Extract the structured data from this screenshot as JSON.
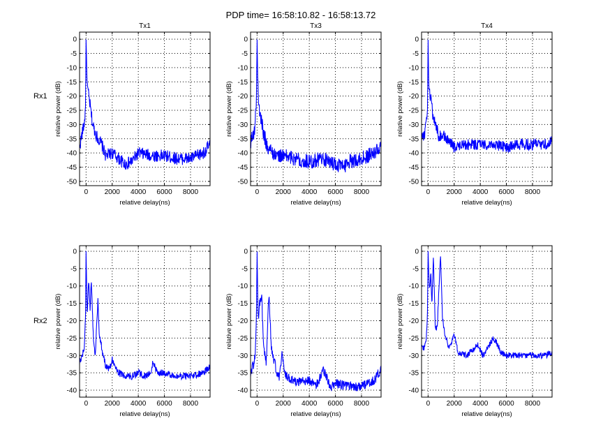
{
  "chart_data": {
    "type": "line",
    "title": "PDP time= 16:58:10.82 - 16:58:13.72",
    "line_color": "#0000ff",
    "grid": true,
    "row_labels": [
      "Rx1",
      "Rx2"
    ],
    "col_labels": [
      "Tx1",
      "Tx3",
      "Tx4"
    ],
    "subplots": [
      {
        "row": 0,
        "col": 0,
        "title": "Tx1",
        "row_label": "Rx1",
        "xlabel": "relative delay(ns)",
        "ylabel": "relative power (dB)",
        "xlim": [
          -500,
          9500
        ],
        "ylim": [
          -51.5,
          2.5
        ],
        "xticks": [
          0,
          2000,
          4000,
          6000,
          8000
        ],
        "yticks": [
          0,
          -5,
          -10,
          -15,
          -20,
          -25,
          -30,
          -35,
          -40,
          -45,
          -50
        ],
        "series": {
          "x": [
            -500,
            -300,
            -150,
            -50,
            0,
            50,
            100,
            200,
            300,
            500,
            800,
            1200,
            1500,
            2000,
            2500,
            3000,
            3500,
            4000,
            5000,
            6000,
            7000,
            8000,
            9000,
            9500
          ],
          "y": [
            -38,
            -33,
            -30,
            -25,
            0,
            -10,
            -17,
            -20,
            -23,
            -30,
            -34,
            -37,
            -41,
            -40,
            -42,
            -44,
            -43,
            -40,
            -41,
            -41,
            -42,
            -42,
            -40,
            -37
          ],
          "noise_db": 2.2
        }
      },
      {
        "row": 0,
        "col": 1,
        "title": "Tx3",
        "row_label": "Rx1",
        "xlabel": "relative delay(ns)",
        "ylabel": "relative power (dB)",
        "xlim": [
          -500,
          9500
        ],
        "ylim": [
          -51.5,
          2.5
        ],
        "xticks": [
          0,
          2000,
          4000,
          6000,
          8000
        ],
        "yticks": [
          0,
          -5,
          -10,
          -15,
          -20,
          -25,
          -30,
          -35,
          -40,
          -45,
          -50
        ],
        "series": {
          "x": [
            -500,
            -300,
            -150,
            -50,
            0,
            50,
            100,
            200,
            300,
            500,
            800,
            1200,
            1500,
            2000,
            3000,
            4000,
            5000,
            6000,
            6600,
            7000,
            8000,
            9000,
            9500
          ],
          "y": [
            -36,
            -34,
            -30,
            -20,
            0,
            -14,
            -21,
            -26,
            -28,
            -33,
            -38,
            -40,
            -41,
            -41,
            -42,
            -43,
            -42,
            -44,
            -45,
            -43,
            -42,
            -40,
            -38
          ],
          "noise_db": 2.6
        }
      },
      {
        "row": 0,
        "col": 2,
        "title": "Tx4",
        "row_label": "Rx1",
        "xlabel": "relative delay(ns)",
        "ylabel": "relative power (dB)",
        "xlim": [
          -500,
          9500
        ],
        "ylim": [
          -51.5,
          2.5
        ],
        "xticks": [
          0,
          2000,
          4000,
          6000,
          8000
        ],
        "yticks": [
          0,
          -5,
          -10,
          -15,
          -20,
          -25,
          -30,
          -35,
          -40,
          -45,
          -50
        ],
        "series": {
          "x": [
            -500,
            -300,
            -150,
            -50,
            0,
            50,
            150,
            250,
            400,
            600,
            800,
            1200,
            1600,
            2000,
            3000,
            4000,
            5000,
            6000,
            7000,
            8000,
            9000,
            9500
          ],
          "y": [
            -33,
            -34,
            -30,
            -26,
            0,
            -15,
            -20,
            -22,
            -28,
            -30,
            -34,
            -34,
            -36,
            -38,
            -37,
            -37,
            -37,
            -38,
            -37,
            -37,
            -37,
            -35
          ],
          "noise_db": 2.0
        }
      },
      {
        "row": 1,
        "col": 0,
        "title": "",
        "row_label": "Rx2",
        "xlabel": "relative delay(ns)",
        "ylabel": "relative power (dB)",
        "xlim": [
          -500,
          9500
        ],
        "ylim": [
          -42,
          1.6
        ],
        "xticks": [
          0,
          2000,
          4000,
          6000,
          8000
        ],
        "yticks": [
          0,
          -5,
          -10,
          -15,
          -20,
          -25,
          -30,
          -35,
          -40
        ],
        "series": {
          "x": [
            -500,
            -300,
            -150,
            -50,
            0,
            80,
            200,
            300,
            400,
            550,
            700,
            900,
            1000,
            1200,
            1500,
            1800,
            2000,
            2500,
            3000,
            3500,
            4000,
            4500,
            5000,
            5100,
            5500,
            6000,
            7000,
            8000,
            9000,
            9500
          ],
          "y": [
            -32,
            -30,
            -28,
            -20,
            0,
            -18,
            -8,
            -17,
            -9,
            -24,
            -30,
            -14,
            -23,
            -28,
            -33,
            -34,
            -31,
            -35,
            -36,
            -36,
            -35,
            -36,
            -35,
            -32,
            -35,
            -35,
            -36,
            -36,
            -35,
            -33
          ],
          "noise_db": 1.0
        }
      },
      {
        "row": 1,
        "col": 1,
        "title": "",
        "row_label": "Rx2",
        "xlabel": "relative delay(ns)",
        "ylabel": "relative power (dB)",
        "xlim": [
          -500,
          9500
        ],
        "ylim": [
          -42,
          1.6
        ],
        "xticks": [
          0,
          2000,
          4000,
          6000,
          8000
        ],
        "yticks": [
          0,
          -5,
          -10,
          -15,
          -20,
          -25,
          -30,
          -35,
          -40
        ],
        "series": {
          "x": [
            -500,
            -300,
            -150,
            -50,
            0,
            80,
            200,
            350,
            500,
            700,
            900,
            1100,
            1400,
            1700,
            1900,
            2200,
            3000,
            4000,
            4500,
            5100,
            5600,
            6000,
            7000,
            8000,
            9000,
            9500
          ],
          "y": [
            -35,
            -33,
            -30,
            -18,
            0,
            -20,
            -15,
            -13,
            -28,
            -32,
            -12,
            -28,
            -33,
            -37,
            -30,
            -36,
            -38,
            -37,
            -39,
            -34,
            -39,
            -38,
            -39,
            -39,
            -37,
            -34
          ],
          "noise_db": 1.4
        }
      },
      {
        "row": 1,
        "col": 2,
        "title": "",
        "row_label": "Rx2",
        "xlabel": "relative delay(ns)",
        "ylabel": "relative power (dB)",
        "xlim": [
          -500,
          9500
        ],
        "ylim": [
          -42,
          1.6
        ],
        "xticks": [
          0,
          2000,
          4000,
          6000,
          8000
        ],
        "yticks": [
          0,
          -5,
          -10,
          -15,
          -20,
          -25,
          -30,
          -35,
          -40
        ],
        "series": {
          "x": [
            -500,
            -300,
            -150,
            -50,
            0,
            100,
            200,
            300,
            400,
            550,
            700,
            950,
            1100,
            1300,
            1600,
            2000,
            2300,
            3000,
            3800,
            4200,
            5000,
            5200,
            5600,
            6000,
            7000,
            8000,
            9000,
            9500
          ],
          "y": [
            -28,
            -28,
            -26,
            -18,
            0,
            -12,
            -6,
            -15,
            -1,
            -22,
            -22,
            -1,
            -19,
            -24,
            -28,
            -24,
            -29,
            -30,
            -27,
            -30,
            -25,
            -26,
            -29,
            -30,
            -30,
            -30,
            -30,
            -29
          ],
          "noise_db": 0.9
        }
      }
    ]
  }
}
